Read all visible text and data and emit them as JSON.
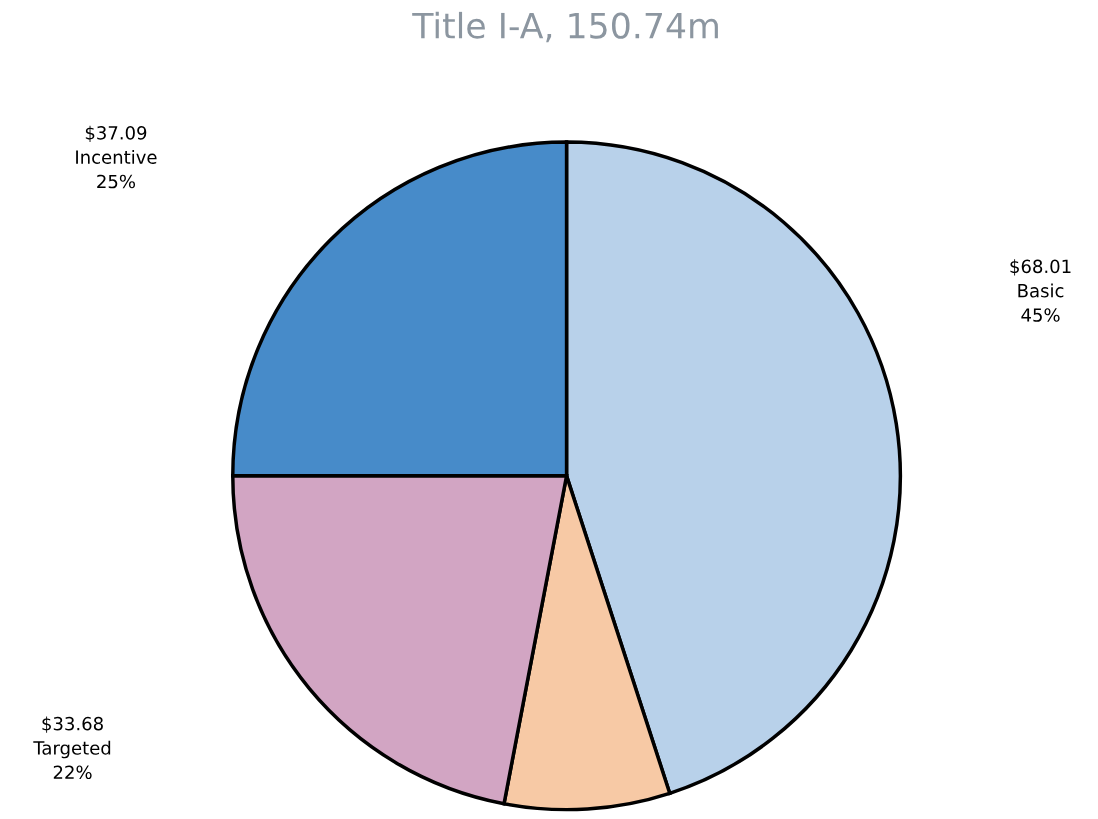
{
  "chart_data": {
    "type": "pie",
    "title": "Title I-A, 150.74m",
    "categories": [
      "Basic",
      null,
      "Targeted",
      "Incentive"
    ],
    "values": [
      45,
      8,
      22,
      25
    ],
    "colors": [
      "#b8d1ea",
      "#f7c9a5",
      "#d2a5c3",
      "#478bc9"
    ],
    "value_labels": [
      "$68.01\n45%",
      null,
      "$33.68\n22%",
      "$37.09\n25%"
    ]
  }
}
